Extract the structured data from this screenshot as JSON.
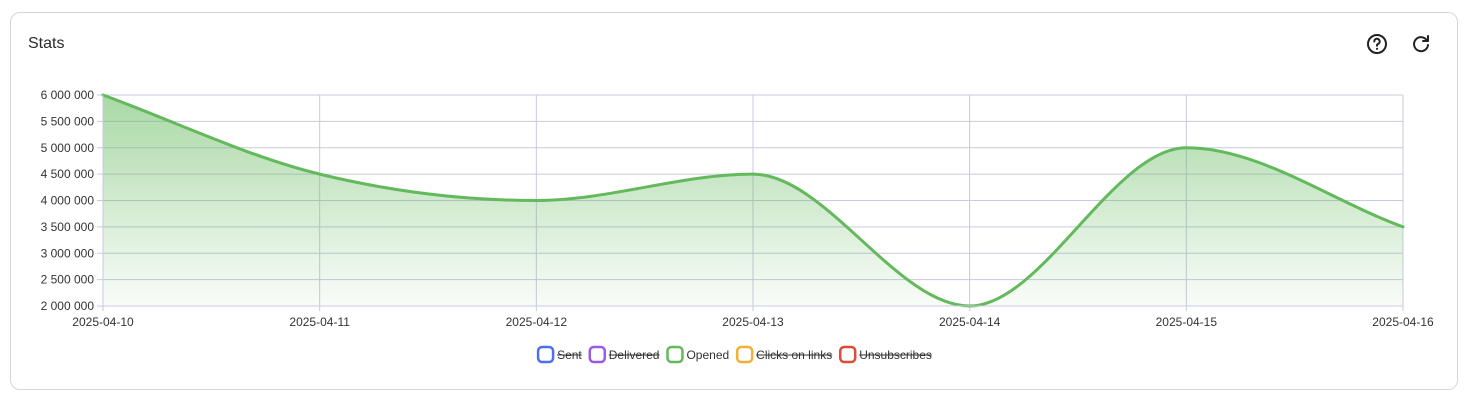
{
  "card": {
    "title": "Stats"
  },
  "icons": {
    "help": "help-circle-icon",
    "refresh": "refresh-icon"
  },
  "colors": {
    "sent": "#4f6ef0",
    "delivered": "#9b59e6",
    "opened": "#63b95c",
    "clicks": "#f2b132",
    "unsubscribes": "#dd4b39",
    "grid": "#c9c9e0"
  },
  "chart_data": {
    "type": "area",
    "title": "",
    "xlabel": "",
    "ylabel": "",
    "x": [
      "2025-04-10",
      "2025-04-11",
      "2025-04-12",
      "2025-04-13",
      "2025-04-14",
      "2025-04-15",
      "2025-04-16"
    ],
    "ylim": [
      2000000,
      6000000
    ],
    "yticks": [
      "6 000 000",
      "5 500 000",
      "5 000 000",
      "4 500 000",
      "4 000 000",
      "3 500 000",
      "3 000 000",
      "2 500 000",
      "2 000 000"
    ],
    "series": [
      {
        "name": "Opened",
        "values": [
          6000000,
          4500000,
          4000000,
          4500000,
          2000000,
          5000000,
          3500000
        ],
        "color": "#63b95c"
      }
    ],
    "legend": [
      {
        "label": "Sent",
        "color": "#4f6ef0",
        "hidden": true
      },
      {
        "label": "Delivered",
        "color": "#9b59e6",
        "hidden": true
      },
      {
        "label": "Opened",
        "color": "#63b95c",
        "hidden": false
      },
      {
        "label": "Clicks on links",
        "color": "#f2b132",
        "hidden": true
      },
      {
        "label": "Unsubscribes",
        "color": "#dd4b39",
        "hidden": true
      }
    ],
    "legend_position": "bottom",
    "grid": true
  }
}
